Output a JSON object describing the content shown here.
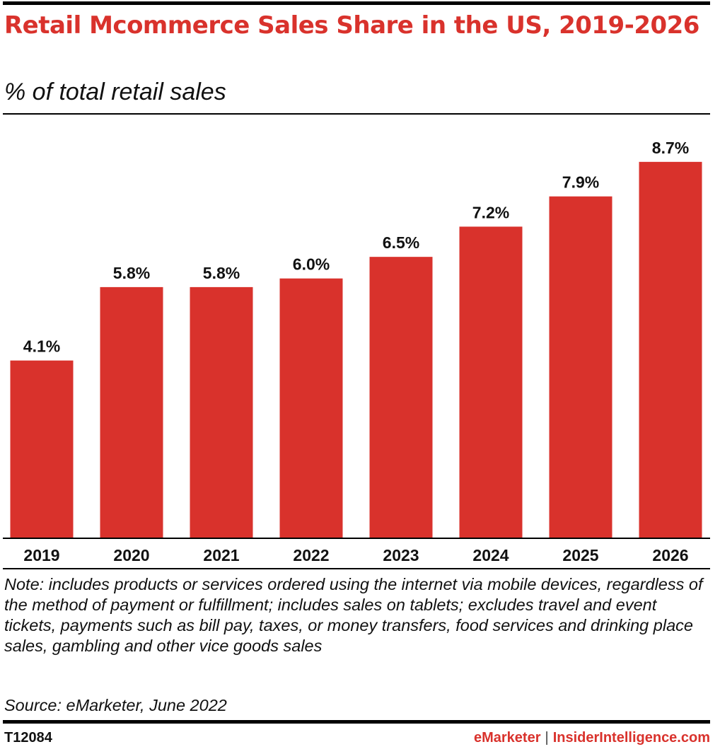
{
  "header": {
    "title": "Retail Mcommerce Sales Share in the US, 2019-2026",
    "subtitle": "% of total retail sales"
  },
  "chart_data": {
    "type": "bar",
    "categories": [
      "2019",
      "2020",
      "2021",
      "2022",
      "2023",
      "2024",
      "2025",
      "2026"
    ],
    "values": [
      4.1,
      5.8,
      5.8,
      6.0,
      6.5,
      7.2,
      7.9,
      8.7
    ],
    "value_labels": [
      "4.1%",
      "5.8%",
      "5.8%",
      "6.0%",
      "6.5%",
      "7.2%",
      "7.9%",
      "8.7%"
    ],
    "title": "Retail Mcommerce Sales Share in the US, 2019-2026",
    "subtitle": "% of total retail sales",
    "ylim": [
      0,
      9.5
    ],
    "grid": false,
    "bar_color": "#d9322c"
  },
  "footer": {
    "note": "Note: includes products or services ordered using the internet via mobile devices, regardless of the method of payment or fulfillment; includes sales on tablets; excludes travel and event tickets, payments such as bill pay, taxes, or money transfers, food services and drinking place sales, gambling and other vice goods sales",
    "source": "Source: eMarketer, June 2022",
    "chart_id": "T12084",
    "brand_left": "eMarketer",
    "brand_separator": "|",
    "brand_right": "InsiderIntelligence.com"
  }
}
